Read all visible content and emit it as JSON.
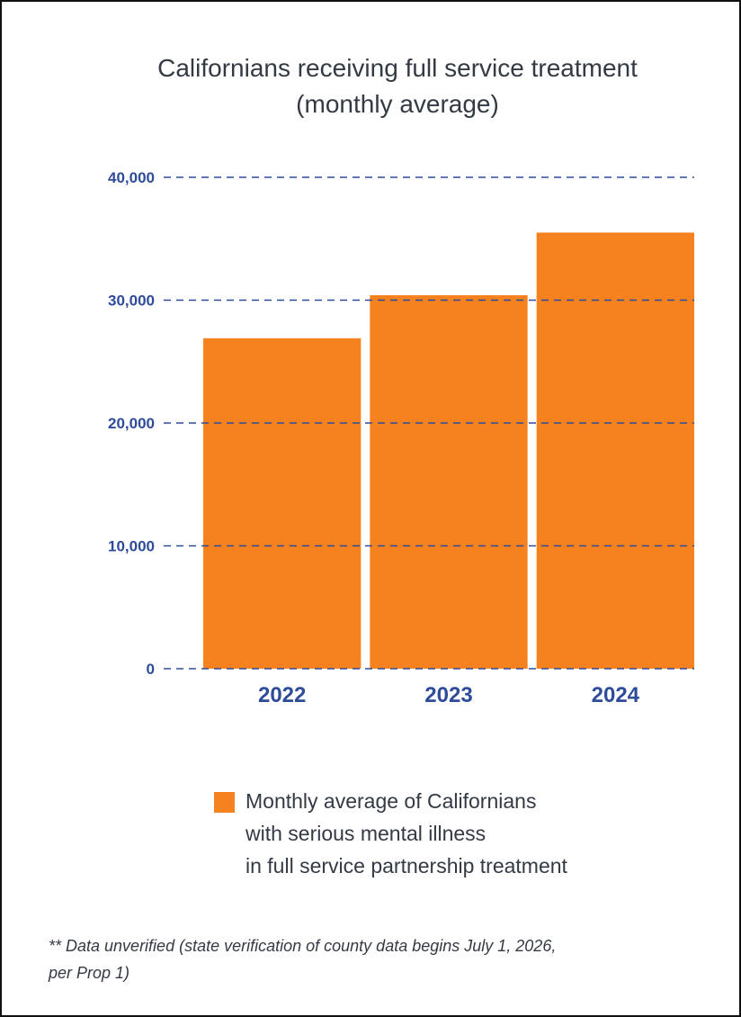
{
  "chart_data": {
    "type": "bar",
    "title_lines": [
      "Californians receiving full service treatment",
      "(monthly average)"
    ],
    "categories": [
      "2022",
      "2023",
      "2024"
    ],
    "series": [
      {
        "name_lines": [
          "Monthly average of Californians",
          "with serious mental illness",
          "in full service partnership treatment"
        ],
        "values": [
          26900,
          30400,
          35500
        ]
      }
    ],
    "y_ticks": [
      0,
      10000,
      20000,
      30000,
      40000
    ],
    "y_tick_labels": [
      "0",
      "10,000",
      "20,000",
      "30,000",
      "40,000"
    ],
    "ylim": [
      0,
      40000
    ],
    "grid": "dashed horizontal",
    "legend_position": "bottom",
    "bar_color": "#f5821f",
    "axis_text_color": "#2f4c9a",
    "grid_color": "#2f4c9a"
  },
  "footnote_lines": [
    "** Data unverified (state verification of county data begins July 1, 2026,",
    "per Prop 1)"
  ]
}
